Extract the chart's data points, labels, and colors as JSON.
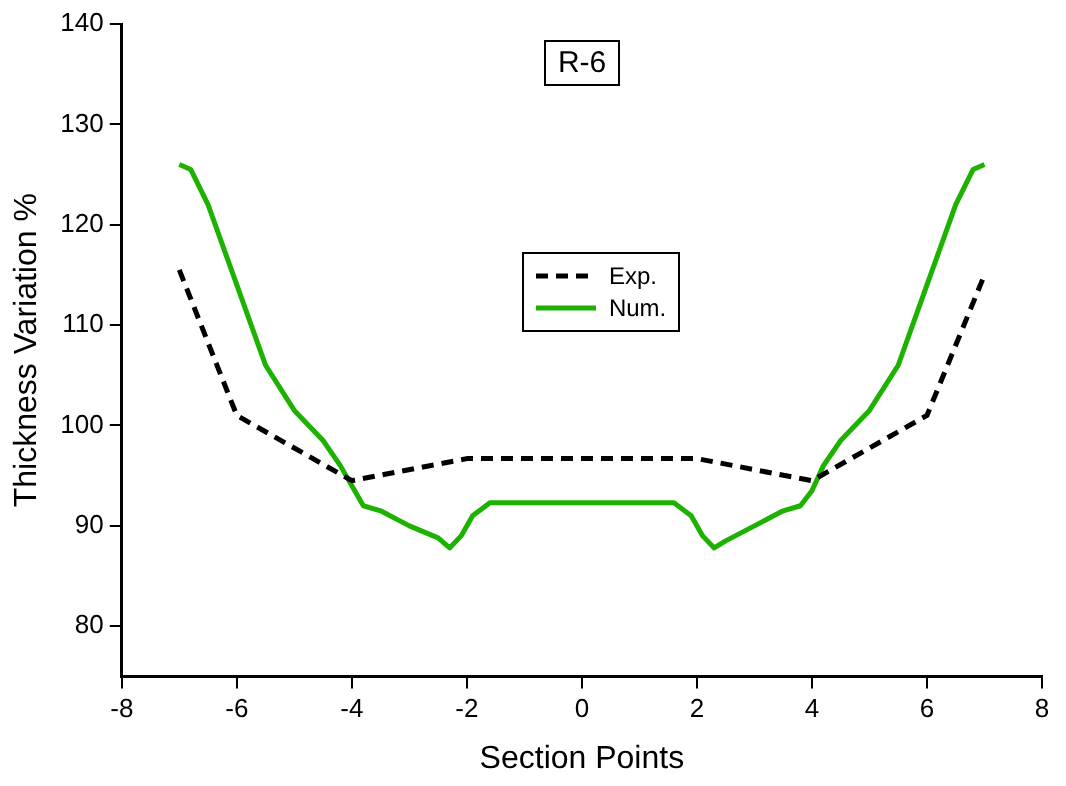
{
  "chart_data": {
    "type": "line",
    "title": "R-6",
    "xlabel": "Section Points",
    "ylabel": "Thickness Variation %",
    "xlim": [
      -8,
      8
    ],
    "xticks": [
      -8,
      -6,
      -4,
      -2,
      0,
      2,
      4,
      6,
      8
    ],
    "ylim": [
      75,
      140
    ],
    "yticks": [
      80,
      90,
      100,
      110,
      120,
      130,
      140
    ],
    "grid": false,
    "legend": "center",
    "marker": "none",
    "series": [
      {
        "name": "Exp.",
        "color": "#000000",
        "line_style": "dashed",
        "x": [
          -7,
          -6,
          -4,
          -2,
          2,
          4,
          6,
          7
        ],
        "values": [
          115.5,
          101,
          94.5,
          96.7,
          96.7,
          94.5,
          101,
          115
        ]
      },
      {
        "name": "Num.",
        "color": "#1db100",
        "line_style": "solid",
        "x": [
          -7,
          -6.8,
          -6.5,
          -6,
          -5.5,
          -5,
          -4.5,
          -4.2,
          -4,
          -3.8,
          -3.5,
          -3,
          -2.5,
          -2.3,
          -2.1,
          -1.9,
          -1.6,
          0,
          1.6,
          1.9,
          2.1,
          2.3,
          2.5,
          3,
          3.5,
          3.8,
          4,
          4.2,
          4.5,
          5,
          5.5,
          6,
          6.5,
          6.8,
          7
        ],
        "values": [
          126,
          125.5,
          122,
          114,
          106,
          101.5,
          98.5,
          96,
          94,
          92,
          91.5,
          90,
          88.8,
          87.8,
          89,
          91,
          92.3,
          92.3,
          92.3,
          91,
          89,
          87.8,
          88.5,
          90,
          91.5,
          92,
          93.5,
          96,
          98.5,
          101.5,
          106,
          114,
          122,
          125.5,
          126
        ]
      }
    ]
  }
}
